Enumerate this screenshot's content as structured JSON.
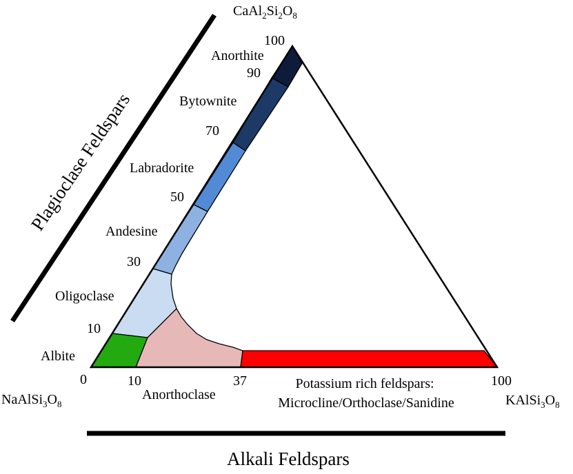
{
  "vertices": {
    "top": {
      "prefix": "CaAl",
      "s1": "2",
      "mid": "Si",
      "s2": "2",
      "o": "O",
      "s3": "8"
    },
    "left": {
      "prefix": "NaAlSi",
      "s1": "3",
      "o": "O",
      "s2": "8"
    },
    "right": {
      "prefix": "KAlSi",
      "s1": "3",
      "o": "O",
      "s2": "8"
    }
  },
  "side_titles": {
    "plagioclase": "Plagioclase Feldspars",
    "alkali": "Alkali Feldspars"
  },
  "plagioclase_ticks": [
    "100",
    "90",
    "70",
    "50",
    "30",
    "10",
    "0"
  ],
  "plagioclase_names": [
    "Anorthite",
    "Bytownite",
    "Labradorite",
    "Andesine",
    "Oligoclase",
    "Albite"
  ],
  "alkali_ticks": [
    "10",
    "37",
    "100"
  ],
  "alkali_names": {
    "anorthoclase": "Anorthoclase",
    "potassium_line1": "Potassium rich feldspars:",
    "potassium_line2": "Microcline/Orthoclase/Sanidine"
  },
  "colors": {
    "anorthite": "#0e1c3c",
    "bytownite": "#1d3a66",
    "labradorite": "#538ad6",
    "andesine": "#8db2e2",
    "oligoclase": "#c9dcf1",
    "albite": "#22aa10",
    "anorthoclase": "#e6b9b8",
    "potassium": "#ff0000"
  }
}
